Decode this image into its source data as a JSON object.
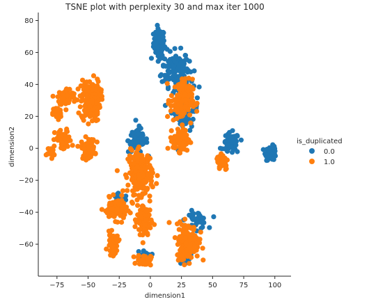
{
  "chart_data": {
    "type": "scatter",
    "title": "TSNE plot with perplexity 30 and max iter 1000",
    "xlabel": "dimension1",
    "ylabel": "dimension2",
    "xlim": [
      -90,
      113
    ],
    "ylim": [
      -80,
      85
    ],
    "x_ticks": [
      -75,
      -50,
      -25,
      0,
      25,
      50,
      75,
      100
    ],
    "y_ticks": [
      -60,
      -40,
      -20,
      0,
      20,
      40,
      60,
      80
    ],
    "x_tick_labels": [
      "−75",
      "−50",
      "−25",
      "0",
      "25",
      "50",
      "75",
      "100"
    ],
    "y_tick_labels": [
      "−60",
      "−40",
      "−20",
      "0",
      "20",
      "40",
      "60",
      "80"
    ],
    "grid": false,
    "legend_position": "right",
    "legend_title": "is_duplicated",
    "series": [
      {
        "name": "0.0",
        "color": "#1f77b4",
        "clusters": [
          {
            "center": [
              7,
              66
            ],
            "spread": [
              4,
              8
            ],
            "count": 90
          },
          {
            "center": [
              20,
              50
            ],
            "spread": [
              10,
              10
            ],
            "count": 140
          },
          {
            "center": [
              28,
              25
            ],
            "spread": [
              10,
              14
            ],
            "count": 70
          },
          {
            "center": [
              -10,
              5
            ],
            "spread": [
              7,
              7
            ],
            "count": 70
          },
          {
            "center": [
              -25,
              -35
            ],
            "spread": [
              6,
              6
            ],
            "count": 30
          },
          {
            "center": [
              65,
              3
            ],
            "spread": [
              6,
              6
            ],
            "count": 60
          },
          {
            "center": [
              97,
              -3
            ],
            "spread": [
              4,
              4
            ],
            "count": 50
          },
          {
            "center": [
              37,
              -45
            ],
            "spread": [
              8,
              5
            ],
            "count": 40
          },
          {
            "center": [
              -5,
              -67
            ],
            "spread": [
              5,
              3
            ],
            "count": 20
          },
          {
            "center": [
              27,
              -70
            ],
            "spread": [
              5,
              3
            ],
            "count": 20
          }
        ]
      },
      {
        "name": "1.0",
        "color": "#ff7f0e",
        "clusters": [
          {
            "center": [
              -75,
              22
            ],
            "spread": [
              3,
              4
            ],
            "count": 40
          },
          {
            "center": [
              -67,
              32
            ],
            "spread": [
              7,
              5
            ],
            "count": 60
          },
          {
            "center": [
              -48,
              30
            ],
            "spread": [
              7,
              12
            ],
            "count": 160
          },
          {
            "center": [
              -70,
              5
            ],
            "spread": [
              6,
              6
            ],
            "count": 50
          },
          {
            "center": [
              -80,
              -2
            ],
            "spread": [
              3,
              3
            ],
            "count": 25
          },
          {
            "center": [
              -50,
              0
            ],
            "spread": [
              5,
              6
            ],
            "count": 60
          },
          {
            "center": [
              -8,
              -15
            ],
            "spread": [
              9,
              12
            ],
            "count": 200
          },
          {
            "center": [
              -28,
              -38
            ],
            "spread": [
              8,
              6
            ],
            "count": 90
          },
          {
            "center": [
              -5,
              -45
            ],
            "spread": [
              5,
              12
            ],
            "count": 90
          },
          {
            "center": [
              -30,
              -60
            ],
            "spread": [
              4,
              6
            ],
            "count": 45
          },
          {
            "center": [
              -5,
              -70
            ],
            "spread": [
              5,
              3
            ],
            "count": 40
          },
          {
            "center": [
              25,
              30
            ],
            "spread": [
              8,
              12
            ],
            "count": 140
          },
          {
            "center": [
              25,
              5
            ],
            "spread": [
              6,
              6
            ],
            "count": 100
          },
          {
            "center": [
              58,
              -8
            ],
            "spread": [
              4,
              5
            ],
            "count": 60
          },
          {
            "center": [
              30,
              -58
            ],
            "spread": [
              8,
              10
            ],
            "count": 180
          }
        ]
      }
    ]
  }
}
